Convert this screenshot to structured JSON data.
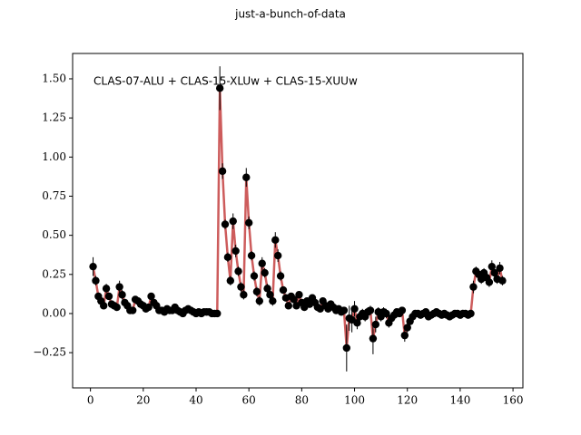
{
  "chart_data": {
    "type": "errorbar",
    "title": "just-a-bunch-of-data",
    "annotation": "CLAS-07-ALU + CLAS-15-XLUw + CLAS-15-XUUw",
    "x": [
      1,
      2,
      3,
      4,
      5,
      6,
      7,
      8,
      9,
      10,
      11,
      12,
      13,
      14,
      15,
      16,
      17,
      18,
      19,
      20,
      21,
      22,
      23,
      24,
      25,
      26,
      27,
      28,
      29,
      30,
      31,
      32,
      33,
      34,
      35,
      36,
      37,
      38,
      39,
      40,
      41,
      42,
      43,
      44,
      45,
      46,
      47,
      48,
      49,
      50,
      51,
      52,
      53,
      54,
      55,
      56,
      57,
      58,
      59,
      60,
      61,
      62,
      63,
      64,
      65,
      66,
      67,
      68,
      69,
      70,
      71,
      72,
      73,
      74,
      75,
      76,
      77,
      78,
      79,
      80,
      81,
      82,
      83,
      84,
      85,
      86,
      87,
      88,
      89,
      90,
      91,
      92,
      93,
      94,
      95,
      96,
      97,
      98,
      99,
      100,
      101,
      102,
      103,
      104,
      105,
      106,
      107,
      108,
      109,
      110,
      111,
      112,
      113,
      114,
      115,
      116,
      117,
      118,
      119,
      120,
      121,
      122,
      123,
      124,
      125,
      126,
      127,
      128,
      129,
      130,
      131,
      132,
      133,
      134,
      135,
      136,
      137,
      138,
      139,
      140,
      141,
      142,
      143,
      144,
      145,
      146,
      147,
      148,
      149,
      150,
      151,
      152,
      153,
      154,
      155,
      156
    ],
    "series": [
      {
        "marker_color": "#000000",
        "line_color": "#cd5c5c",
        "values": [
          0.3,
          0.21,
          0.11,
          0.08,
          0.05,
          0.16,
          0.11,
          0.06,
          0.05,
          0.04,
          0.17,
          0.12,
          0.07,
          0.05,
          0.02,
          0.02,
          0.09,
          0.08,
          0.06,
          0.05,
          0.03,
          0.04,
          0.11,
          0.07,
          0.05,
          0.02,
          0.02,
          0.01,
          0.03,
          0.02,
          0.02,
          0.04,
          0.02,
          0.01,
          0,
          0.02,
          0.03,
          0.02,
          0.01,
          0,
          0.01,
          0,
          0.01,
          0.01,
          0.01,
          0,
          0,
          0,
          1.44,
          0.91,
          0.57,
          0.36,
          0.21,
          0.59,
          0.4,
          0.27,
          0.17,
          0.12,
          0.87,
          0.58,
          0.37,
          0.24,
          0.14,
          0.08,
          0.32,
          0.26,
          0.16,
          0.12,
          0.08,
          0.47,
          0.37,
          0.24,
          0.15,
          0.1,
          0.05,
          0.11,
          0.09,
          0.05,
          0.12,
          0.07,
          0.04,
          0.08,
          0.06,
          0.1,
          0.07,
          0.04,
          0.03,
          0.08,
          0.05,
          0.03,
          0.06,
          0.04,
          0.02,
          0.03,
          0.01,
          0.02,
          -0.22,
          -0.03,
          -0.04,
          0.03,
          -0.06,
          -0.02,
          0,
          -0.02,
          0.01,
          0.02,
          -0.16,
          -0.07,
          0.01,
          -0.02,
          0.01,
          0,
          -0.06,
          -0.03,
          -0.01,
          0.01,
          0,
          0.02,
          -0.14,
          -0.09,
          -0.05,
          -0.02,
          0,
          0,
          -0.01,
          0,
          0.01,
          -0.02,
          -0.01,
          0,
          0.01,
          0,
          -0.01,
          0,
          -0.01,
          -0.02,
          -0.01,
          0,
          0,
          -0.01,
          0,
          0,
          -0.01,
          0,
          0.17,
          0.27,
          0.25,
          0.22,
          0.26,
          0.23,
          0.2,
          0.3,
          0.26,
          0.22,
          0.29,
          0.21
        ],
        "errors": [
          0.06,
          0.03,
          0.02,
          0.02,
          0.02,
          0.03,
          0.02,
          0.02,
          0.02,
          0.02,
          0.04,
          0.03,
          0.02,
          0.02,
          0.02,
          0.02,
          0.02,
          0.02,
          0.02,
          0.02,
          0.02,
          0.02,
          0.02,
          0.02,
          0.02,
          0.02,
          0.02,
          0.02,
          0.02,
          0.02,
          0.02,
          0.02,
          0.02,
          0.02,
          0.02,
          0.02,
          0.02,
          0.02,
          0.02,
          0.02,
          0.02,
          0.02,
          0.02,
          0.02,
          0.02,
          0.02,
          0.02,
          0.02,
          0.14,
          0.05,
          0.03,
          0.03,
          0.03,
          0.05,
          0.04,
          0.03,
          0.03,
          0.03,
          0.06,
          0.04,
          0.03,
          0.03,
          0.03,
          0.03,
          0.04,
          0.03,
          0.03,
          0.03,
          0.03,
          0.05,
          0.04,
          0.03,
          0.02,
          0.02,
          0.02,
          0.02,
          0.02,
          0.02,
          0.02,
          0.02,
          0.02,
          0.02,
          0.02,
          0.02,
          0.02,
          0.02,
          0.02,
          0.02,
          0.02,
          0.02,
          0.02,
          0.02,
          0.02,
          0.02,
          0.02,
          0.02,
          0.15,
          0.08,
          0.08,
          0.05,
          0.04,
          0.03,
          0.03,
          0.03,
          0.03,
          0.03,
          0.1,
          0.05,
          0.03,
          0.03,
          0.03,
          0.03,
          0.03,
          0.03,
          0.02,
          0.02,
          0.02,
          0.02,
          0.04,
          0.03,
          0.02,
          0.02,
          0.02,
          0.02,
          0.02,
          0.02,
          0.02,
          0.02,
          0.02,
          0.02,
          0.02,
          0.02,
          0.02,
          0.02,
          0.02,
          0.02,
          0.02,
          0.02,
          0.02,
          0.02,
          0.02,
          0.02,
          0.02,
          0.02,
          0.04,
          0.03,
          0.03,
          0.03,
          0.03,
          0.03,
          0.03,
          0.04,
          0.03,
          0.03,
          0.04,
          0.03
        ]
      }
    ],
    "xlim": [
      -6.75,
      163.75
    ],
    "xticks": [
      0,
      20,
      40,
      60,
      80,
      100,
      120,
      140,
      160
    ],
    "ylim": [
      -0.475,
      1.662
    ],
    "yticks": [
      {
        "value": -0.25,
        "label": "−0.25"
      },
      {
        "value": 0,
        "label": "0.00"
      },
      0.25,
      {
        "value": 0.5,
        "label": "0.50"
      },
      0.75,
      {
        "value": 1,
        "label": "1.00"
      },
      1.25,
      {
        "value": 1.5,
        "label": "1.50"
      }
    ]
  }
}
